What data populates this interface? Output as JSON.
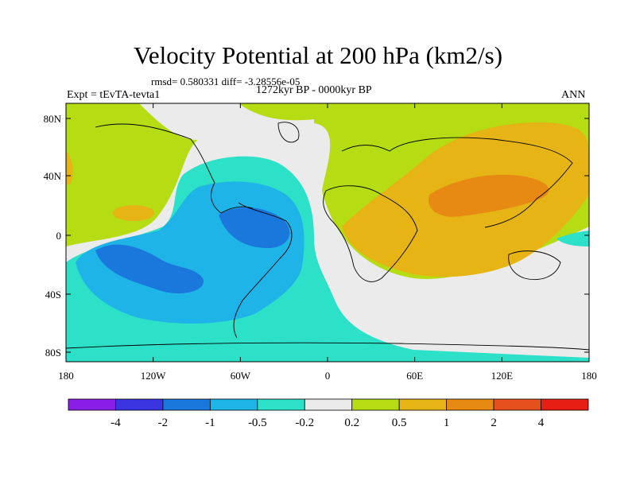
{
  "title": "Velocity Potential at 200 hPa (km2/s)",
  "stats_line": "rmsd= 0.580331 diff= -3.28556e-05",
  "period": "1272kyr BP - 0000kyr BP",
  "experiment": "Expt = tEvTA-tevta1",
  "season": "ANN",
  "map": {
    "lat_labels": [
      "80N",
      "40N",
      "0",
      "40S",
      "80S"
    ],
    "lon_labels": [
      "180",
      "120W",
      "60W",
      "0",
      "60E",
      "120E",
      "180"
    ]
  },
  "colorbar": {
    "colors": [
      "#8b1ee6",
      "#3a35e0",
      "#1a78dc",
      "#1eb4e8",
      "#2de0c8",
      "#ebebeb",
      "#b6dc14",
      "#e6b414",
      "#e68a14",
      "#e6501e",
      "#e61e14"
    ],
    "labels": [
      "-4",
      "-2",
      "-1",
      "-0.5",
      "-0.2",
      "0.2",
      "0.5",
      "1",
      "2",
      "4"
    ]
  }
}
